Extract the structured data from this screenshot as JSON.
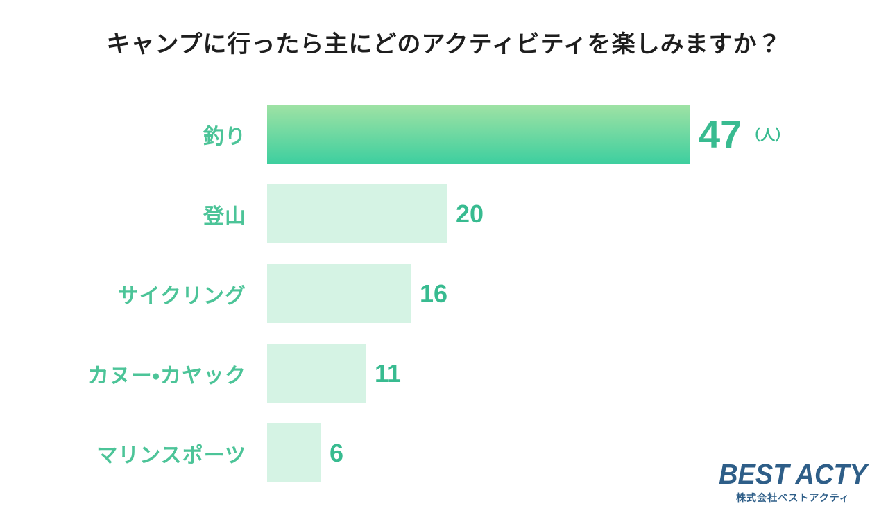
{
  "title": "キャンプに行ったら主にどのアクティビティを楽しみますか？",
  "chart_data": {
    "type": "bar",
    "orientation": "horizontal",
    "title": "キャンプに行ったら主にどのアクティビティを楽しみますか？",
    "categories": [
      "釣り",
      "登山",
      "サイクリング",
      "カヌー・カヤック",
      "マリンスポーツ"
    ],
    "values": [
      47,
      20,
      16,
      11,
      6
    ],
    "unit": "（人）",
    "xlim": [
      0,
      47
    ],
    "grid": false,
    "legend": false,
    "colors": {
      "bar_primary_gradient_top": "#9fe2a4",
      "bar_primary_gradient_bottom": "#3ecf9f",
      "bar_secondary": "#d5f3e4",
      "label_text": "#4cc498",
      "value_text": "#38bb90",
      "title_text": "#1e1e1e"
    }
  },
  "logo": {
    "brand": "BEST ACTY",
    "company": "株式会社ベストアクティ",
    "color": "#2e5e88"
  }
}
